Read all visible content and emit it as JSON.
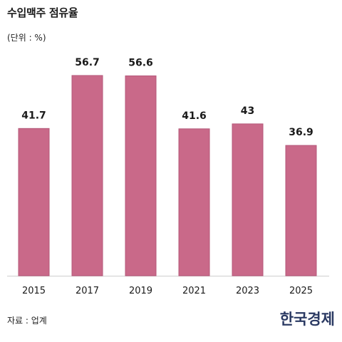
{
  "header": {
    "title": "수입맥주 점유율",
    "unit": "(단위 : %)"
  },
  "footer": {
    "source": "자료 : 업계",
    "logo": "한국경제"
  },
  "colors": {
    "bar": "#c96989",
    "bar_border": "#b5587a",
    "axis": "#cfcfcf"
  },
  "chart_data": {
    "type": "bar",
    "categories": [
      "2015",
      "2017",
      "2019",
      "2021",
      "2023",
      "2025"
    ],
    "values": [
      41.7,
      56.7,
      56.6,
      41.6,
      43,
      36.9
    ],
    "value_labels": [
      "41.7",
      "56.7",
      "56.6",
      "41.6",
      "43",
      "36.9"
    ],
    "title": "수입맥주 점유율",
    "ylabel": "(단위 : %)",
    "ylim": [
      0,
      57.5
    ],
    "grid": false
  }
}
